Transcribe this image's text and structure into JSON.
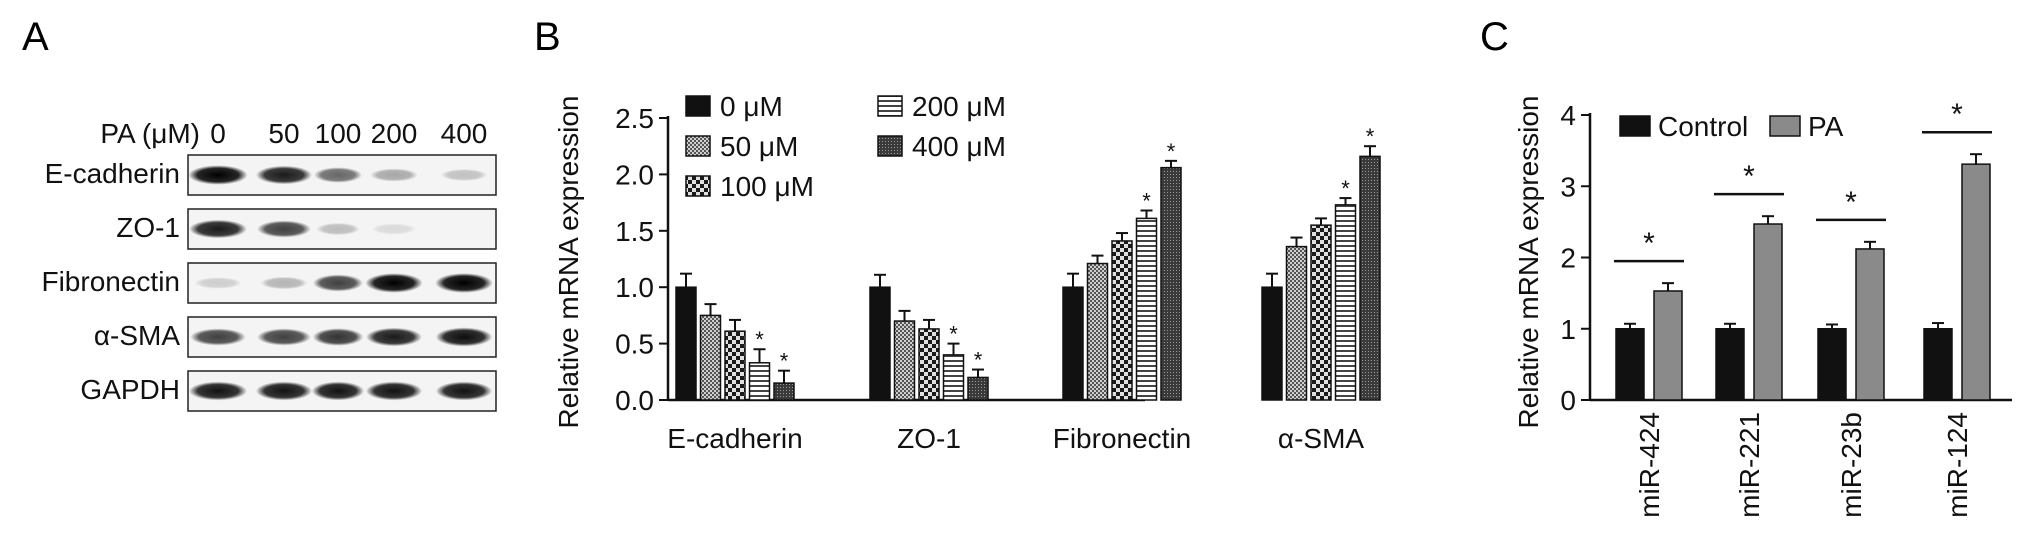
{
  "panel_a": {
    "letter": "A",
    "header_label": "PA (μM)",
    "lane_labels": [
      "0",
      "50",
      "100",
      "200",
      "400"
    ],
    "rows": [
      {
        "label": "E-cadherin",
        "band_intensity": [
          0.95,
          0.85,
          0.55,
          0.3,
          0.2
        ]
      },
      {
        "label": "ZO-1",
        "band_intensity": [
          0.85,
          0.7,
          0.22,
          0.1,
          0.02
        ]
      },
      {
        "label": "Fibronectin",
        "band_intensity": [
          0.15,
          0.25,
          0.7,
          0.95,
          0.97
        ]
      },
      {
        "label": "α-SMA",
        "band_intensity": [
          0.7,
          0.7,
          0.75,
          0.85,
          0.9
        ]
      },
      {
        "label": "GAPDH",
        "band_intensity": [
          0.88,
          0.88,
          0.88,
          0.88,
          0.88
        ]
      }
    ]
  },
  "chart_data": [
    {
      "letter": "B",
      "type": "bar",
      "ylabel": "Relative mRNA expression",
      "ylim": [
        0,
        2.5
      ],
      "yticks": [
        "0.0",
        "0.5",
        "1.0",
        "1.5",
        "2.0",
        "2.5"
      ],
      "categories": [
        "E-cadherin",
        "ZO-1",
        "Fibronectin",
        "α-SMA"
      ],
      "legend_placement": "top-left",
      "series": [
        {
          "name": "0 μM",
          "pattern": "solid",
          "values": [
            1.0,
            1.0,
            1.0,
            1.0
          ],
          "errors": [
            0.12,
            0.11,
            0.12,
            0.12
          ],
          "sig": [
            false,
            false,
            false,
            false
          ]
        },
        {
          "name": "50 μM",
          "pattern": "fine",
          "values": [
            0.75,
            0.7,
            1.21,
            1.36
          ],
          "errors": [
            0.1,
            0.09,
            0.07,
            0.08
          ],
          "sig": [
            false,
            false,
            false,
            false
          ]
        },
        {
          "name": "100 μM",
          "pattern": "checker",
          "values": [
            0.61,
            0.63,
            1.41,
            1.55
          ],
          "errors": [
            0.1,
            0.08,
            0.07,
            0.06
          ],
          "sig": [
            false,
            false,
            false,
            false
          ]
        },
        {
          "name": "200 μM",
          "pattern": "hstripe",
          "values": [
            0.33,
            0.4,
            1.61,
            1.73
          ],
          "errors": [
            0.12,
            0.1,
            0.07,
            0.06
          ],
          "sig": [
            true,
            true,
            true,
            true
          ]
        },
        {
          "name": "400 μM",
          "pattern": "dense",
          "values": [
            0.15,
            0.2,
            2.06,
            2.16
          ],
          "errors": [
            0.11,
            0.07,
            0.06,
            0.09
          ],
          "sig": [
            true,
            true,
            true,
            true
          ]
        }
      ],
      "sig_marker": "*"
    },
    {
      "letter": "C",
      "type": "bar",
      "ylabel": "Relative mRNA expression",
      "ylim": [
        0,
        4
      ],
      "yticks": [
        "0",
        "1",
        "2",
        "3",
        "4"
      ],
      "categories": [
        "miR-424",
        "miR-221",
        "miR-23b",
        "miR-124"
      ],
      "legend_placement": "top-left",
      "series": [
        {
          "name": "Control",
          "color": "#111111",
          "values": [
            1.0,
            1.0,
            1.0,
            1.0
          ],
          "errors": [
            0.07,
            0.07,
            0.06,
            0.08
          ]
        },
        {
          "name": "PA",
          "color": "#8a8a8a",
          "values": [
            1.53,
            2.47,
            2.12,
            3.31
          ],
          "errors": [
            0.11,
            0.11,
            0.1,
            0.14
          ]
        }
      ],
      "sig_marker": "*"
    }
  ]
}
